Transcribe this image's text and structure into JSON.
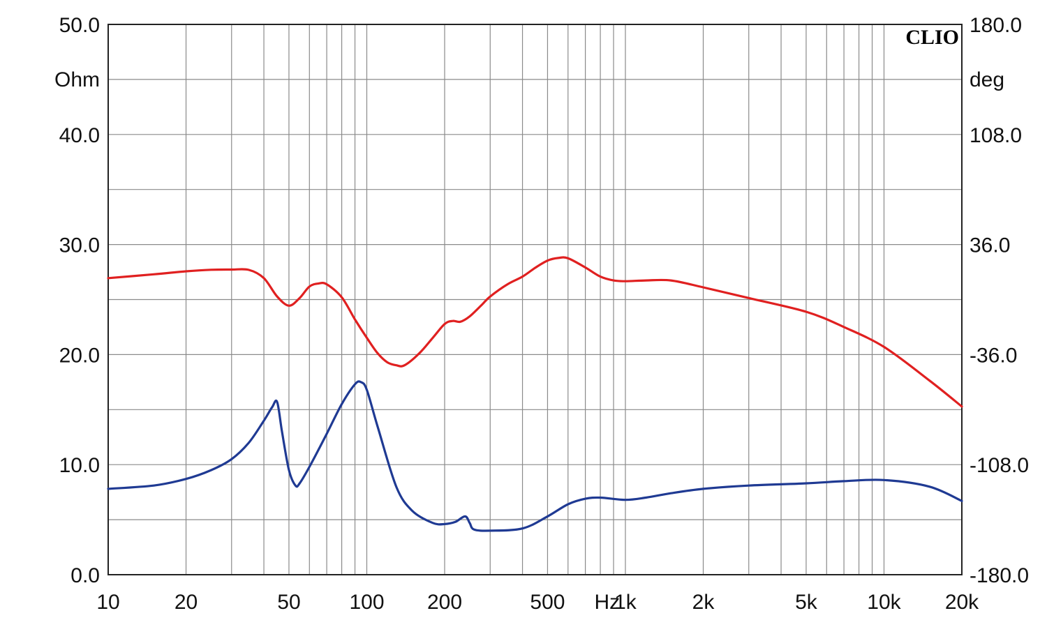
{
  "chart_data": {
    "type": "line",
    "brand": "CLIO",
    "x_scale": "log",
    "xlim": [
      10,
      20000
    ],
    "xticks": [
      "10",
      "20",
      "50",
      "100",
      "200",
      "500",
      "Hz",
      "1k",
      "2k",
      "5k",
      "10k",
      "20k"
    ],
    "y_left": {
      "unit": "Ohm",
      "ylim": [
        0,
        50
      ],
      "ticks": [
        "50.0",
        "40.0",
        "30.0",
        "20.0",
        "10.0",
        "0.0"
      ]
    },
    "y_right": {
      "unit": "deg",
      "ylim": [
        -180,
        180
      ],
      "ticks": [
        "180.0",
        "108.0",
        "36.0",
        "-36.0",
        "-108.0",
        "-180.0"
      ]
    },
    "grid": true,
    "series": [
      {
        "color": "#e02020",
        "axis": "right",
        "x": [
          10,
          15,
          20,
          25,
          30,
          35,
          40,
          45,
          50,
          55,
          60,
          65,
          70,
          80,
          90,
          100,
          110,
          120,
          130,
          140,
          160,
          180,
          200,
          215,
          230,
          250,
          280,
          300,
          350,
          400,
          450,
          500,
          550,
          600,
          700,
          800,
          900,
          1000,
          1200,
          1500,
          2000,
          3000,
          5000,
          7000,
          10000,
          15000,
          20000
        ],
        "y": [
          14,
          16.5,
          18.5,
          19.5,
          19.6,
          19.4,
          14,
          2,
          -4,
          1,
          8.5,
          10.5,
          10,
          1.5,
          -13,
          -25,
          -35,
          -41,
          -43,
          -43,
          -35,
          -25,
          -16,
          -14,
          -14.5,
          -11,
          -3,
          2,
          10,
          15,
          21,
          25.5,
          27.2,
          27,
          21,
          15,
          12.5,
          12,
          12.5,
          12.5,
          8,
          1,
          -8,
          -18,
          -31,
          -53,
          -70
        ]
      },
      {
        "color": "#1f3a93",
        "axis": "left",
        "x": [
          10,
          15,
          20,
          25,
          30,
          35,
          40,
          43,
          45,
          47,
          50,
          53,
          55,
          60,
          70,
          80,
          90,
          95,
          100,
          110,
          130,
          150,
          180,
          200,
          220,
          240,
          250,
          260,
          300,
          400,
          500,
          600,
          700,
          800,
          1000,
          1200,
          1500,
          2000,
          3000,
          5000,
          7000,
          10000,
          15000,
          20000
        ],
        "y": [
          7.8,
          8.1,
          8.7,
          9.5,
          10.5,
          12,
          14,
          15.2,
          15.7,
          13,
          9.5,
          8.1,
          8.3,
          9.8,
          12.8,
          15.5,
          17.3,
          17.5,
          16.8,
          13.5,
          8,
          5.8,
          4.7,
          4.6,
          4.8,
          5.3,
          4.7,
          4.1,
          4,
          4.2,
          5.3,
          6.4,
          6.9,
          7,
          6.8,
          7,
          7.4,
          7.8,
          8.1,
          8.3,
          8.5,
          8.6,
          8,
          6.7
        ]
      }
    ]
  }
}
